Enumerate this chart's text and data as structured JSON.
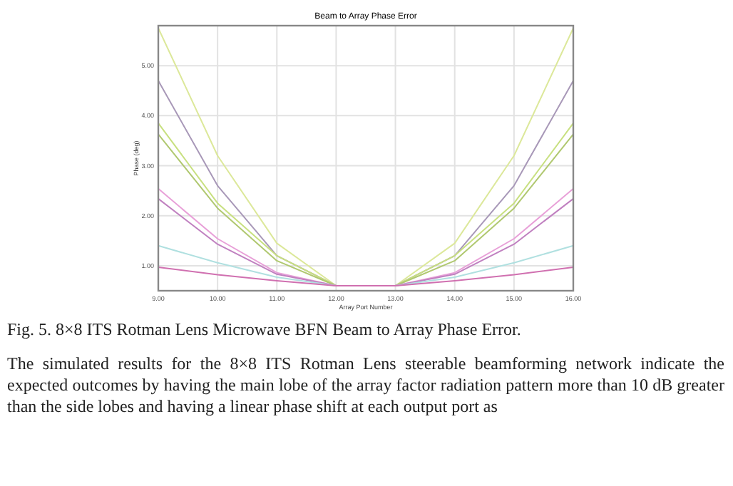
{
  "chart_data": {
    "type": "line",
    "title": "Beam to Array Phase Error",
    "xlabel": "Array Port Number",
    "ylabel": "Phase (deg)",
    "x": [
      9,
      10,
      11,
      12,
      13,
      14,
      15,
      16
    ],
    "xlim": [
      9,
      16
    ],
    "xticks": [
      {
        "value": 9,
        "label": "9.00"
      },
      {
        "value": 10,
        "label": "10.00"
      },
      {
        "value": 11,
        "label": "11.00"
      },
      {
        "value": 12,
        "label": "12.00"
      },
      {
        "value": 13,
        "label": "13.00"
      },
      {
        "value": 14,
        "label": "14.00"
      },
      {
        "value": 15,
        "label": "15.00"
      },
      {
        "value": 16,
        "label": "16.00"
      }
    ],
    "ylim": [
      0.5,
      5.8
    ],
    "yticks": [
      {
        "value": 1,
        "label": "1.00"
      },
      {
        "value": 2,
        "label": "2.00"
      },
      {
        "value": 3,
        "label": "3.00"
      },
      {
        "value": 4,
        "label": "4.00"
      },
      {
        "value": 5,
        "label": "5.00"
      }
    ],
    "grid": true,
    "marker": "none",
    "line_style": "solid",
    "series": [
      {
        "color": "#dce89a",
        "values": [
          5.75,
          3.2,
          1.45,
          0.6,
          0.6,
          1.45,
          3.2,
          5.75
        ]
      },
      {
        "color": "#a898b8",
        "values": [
          4.7,
          2.6,
          1.2,
          0.6,
          0.6,
          1.2,
          2.6,
          4.7
        ]
      },
      {
        "color": "#c8e080",
        "values": [
          3.85,
          2.25,
          1.2,
          0.6,
          0.6,
          1.2,
          2.25,
          3.85
        ]
      },
      {
        "color": "#b0c870",
        "values": [
          3.63,
          2.15,
          1.1,
          0.6,
          0.6,
          1.1,
          2.15,
          3.63
        ]
      },
      {
        "color": "#e8a0d8",
        "values": [
          2.54,
          1.54,
          0.86,
          0.6,
          0.6,
          0.86,
          1.54,
          2.54
        ]
      },
      {
        "color": "#c080c0",
        "values": [
          2.34,
          1.43,
          0.83,
          0.6,
          0.6,
          0.83,
          1.43,
          2.34
        ]
      },
      {
        "color": "#b0e0e0",
        "values": [
          1.4,
          1.06,
          0.77,
          0.6,
          0.6,
          0.77,
          1.06,
          1.4
        ]
      },
      {
        "color": "#d070b0",
        "values": [
          0.97,
          0.82,
          0.7,
          0.6,
          0.6,
          0.7,
          0.82,
          0.97
        ]
      }
    ],
    "annotations": [
      "Fig. 5. 8×8 ITS Rotman Lens Microwave BFN Beam to Array Phase Error.",
      "The simulated results for the 8×8 ITS Rotman Lens steerable beamforming network indicate the expected outcomes by having the main lobe of the array factor radiation pattern more than 10 dB greater than the side lobes and having a linear phase shift at each output port as"
    ]
  }
}
